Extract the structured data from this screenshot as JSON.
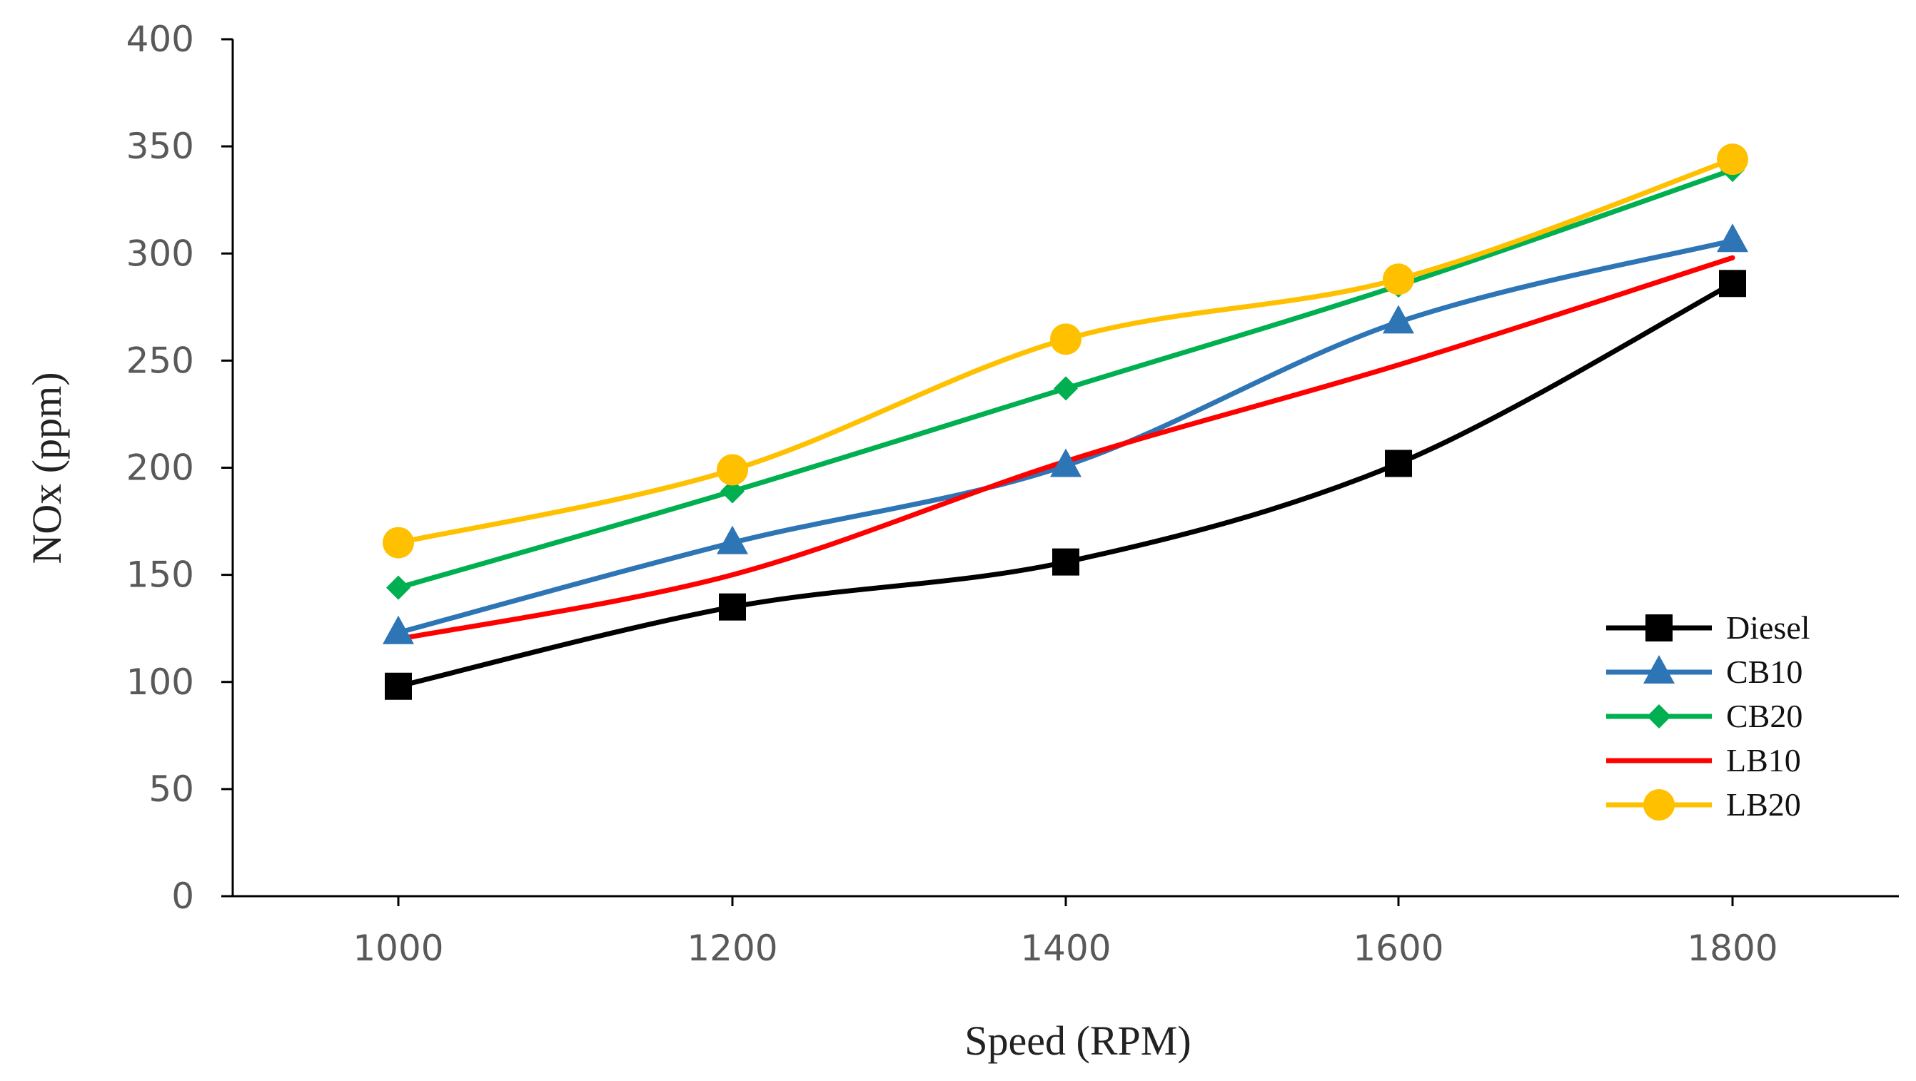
{
  "chart_data": {
    "type": "line",
    "title": "",
    "xlabel": "Speed (RPM)",
    "ylabel": "NOx (ppm)",
    "categories": [
      "1000",
      "1200",
      "1400",
      "1600",
      "1800"
    ],
    "ylim": [
      0,
      400
    ],
    "yticks": [
      "0",
      "50",
      "100",
      "150",
      "200",
      "250",
      "300",
      "350",
      "400"
    ],
    "grid": false,
    "legend": "bottom-right",
    "series": [
      {
        "name": "Diesel",
        "color": "#000000",
        "marker": "square",
        "values": [
          98,
          135,
          156,
          202,
          286
        ]
      },
      {
        "name": "CB10",
        "color": "#2E75B6",
        "marker": "triangle",
        "values": [
          123,
          165,
          201,
          268,
          306
        ]
      },
      {
        "name": "CB20",
        "color": "#00B050",
        "marker": "diamond",
        "values": [
          144,
          189,
          237,
          285,
          339
        ]
      },
      {
        "name": "LB10",
        "color": "#FF0000",
        "marker": "none",
        "values": [
          120,
          150,
          203,
          248,
          298
        ]
      },
      {
        "name": "LB20",
        "color": "#FFC000",
        "marker": "circle",
        "values": [
          165,
          199,
          260,
          288,
          344
        ]
      }
    ]
  }
}
